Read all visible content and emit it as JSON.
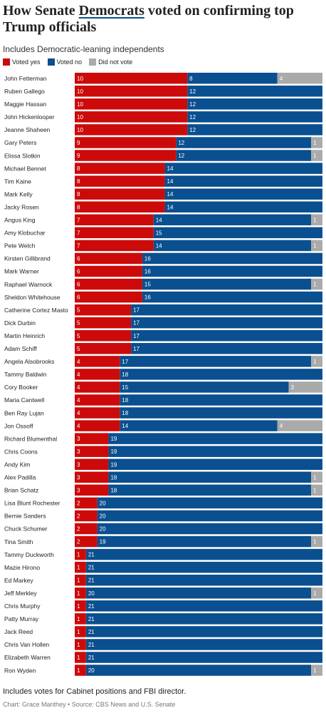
{
  "header": {
    "title_pre": "How Senate ",
    "title_highlight": "Democrats",
    "title_post": " voted on confirming top Trump officials",
    "subtitle": "Includes Democratic-leaning independents"
  },
  "legend": [
    {
      "label": "Voted yes",
      "color": "#cc0a0a"
    },
    {
      "label": "Voted no",
      "color": "#0a4f8f"
    },
    {
      "label": "Did not vote",
      "color": "#aaaaaa"
    }
  ],
  "footer": {
    "note": "Includes votes for Cabinet positions and FBI director.",
    "credit": "Chart: Grace Manthey • Source: CBS News and U.S. Senate"
  },
  "chart_data": {
    "type": "bar",
    "orientation": "horizontal",
    "stacked": true,
    "categories": [
      "John Fetterman",
      "Ruben Gallego",
      "Maggie Hassan",
      "John Hickenlooper",
      "Jeanne Shaheen",
      "Gary Peters",
      "Elissa Slotkin",
      "Michael Bennet",
      "Tim Kaine",
      "Mark Kelly",
      "Jacky Rosen",
      "Angus King",
      "Amy Klobuchar",
      "Pete Welch",
      "Kirsten Gillibrand",
      "Mark Warner",
      "Raphael Warnock",
      "Sheldon Whitehouse",
      "Catherine Cortez Masto",
      "Dick Durbin",
      "Martin Heinrich",
      "Adam Schiff",
      "Angela Alsobrooks",
      "Tammy Baldwin",
      "Cory Booker",
      "Maria Cantwell",
      "Ben Ray Lujan",
      "Jon Ossoff",
      "Richard Blumenthal",
      "Chris Coons",
      "Andy Kim",
      "Alex Padilla",
      "Brian Schatz",
      "Lisa Blunt Rochester",
      "Bernie Sanders",
      "Chuck Schumer",
      "Tina Smith",
      "Tammy Duckworth",
      "Mazie Hirono",
      "Ed Markey",
      "Jeff Merkley",
      "Chris Murphy",
      "Patty Murray",
      "Jack Reed",
      "Chris Van Hollen",
      "Elizabeth Warren",
      "Ron Wyden"
    ],
    "series": [
      {
        "name": "Voted yes",
        "color": "#cc0a0a",
        "values": [
          10,
          10,
          10,
          10,
          10,
          9,
          9,
          8,
          8,
          8,
          8,
          7,
          7,
          7,
          6,
          6,
          6,
          6,
          5,
          5,
          5,
          5,
          4,
          4,
          4,
          4,
          4,
          4,
          3,
          3,
          3,
          3,
          3,
          2,
          2,
          2,
          2,
          1,
          1,
          1,
          1,
          1,
          1,
          1,
          1,
          1,
          1
        ]
      },
      {
        "name": "Voted no",
        "color": "#0a4f8f",
        "values": [
          8,
          12,
          12,
          12,
          12,
          12,
          12,
          14,
          14,
          14,
          14,
          14,
          15,
          14,
          16,
          16,
          15,
          16,
          17,
          17,
          17,
          17,
          17,
          18,
          15,
          18,
          18,
          14,
          19,
          19,
          19,
          18,
          18,
          20,
          20,
          20,
          19,
          21,
          21,
          21,
          20,
          21,
          21,
          21,
          21,
          21,
          20
        ]
      },
      {
        "name": "Did not vote",
        "color": "#aaaaaa",
        "values": [
          4,
          0,
          0,
          0,
          0,
          1,
          1,
          0,
          0,
          0,
          0,
          1,
          0,
          1,
          0,
          0,
          1,
          0,
          0,
          0,
          0,
          0,
          1,
          0,
          3,
          0,
          0,
          4,
          0,
          0,
          0,
          1,
          1,
          0,
          0,
          0,
          1,
          0,
          0,
          0,
          1,
          0,
          0,
          0,
          0,
          0,
          1
        ]
      }
    ],
    "xlim": [
      0,
      22
    ]
  }
}
